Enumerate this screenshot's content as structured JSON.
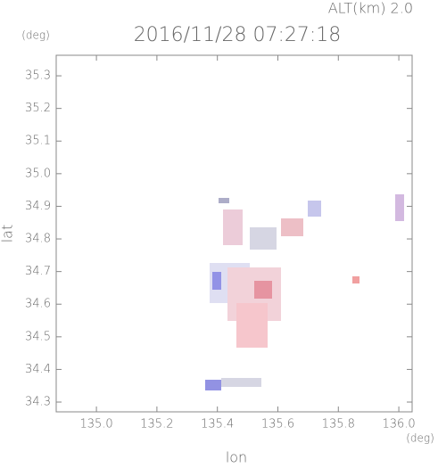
{
  "chart_data": {
    "type": "map",
    "title": "2016/11/28 07:27:18",
    "subtitle": "ALT(km) 2.0",
    "x_label": "lon",
    "y_label": "lat",
    "x_unit": "(deg)",
    "y_unit": "(deg)",
    "xlim": [
      134.867,
      136.044
    ],
    "ylim": [
      34.27,
      35.363
    ],
    "xticks": [
      {
        "value": 135,
        "label": "135.0"
      },
      135.2,
      135.4,
      135.6,
      135.8,
      {
        "value": 136,
        "label": "136.0"
      }
    ],
    "yticks": [
      35.3,
      35.2,
      35.1,
      {
        "value": 35,
        "label": "35.0"
      },
      34.9,
      34.8,
      34.7,
      34.6,
      34.5,
      34.4,
      34.3
    ]
  }
}
